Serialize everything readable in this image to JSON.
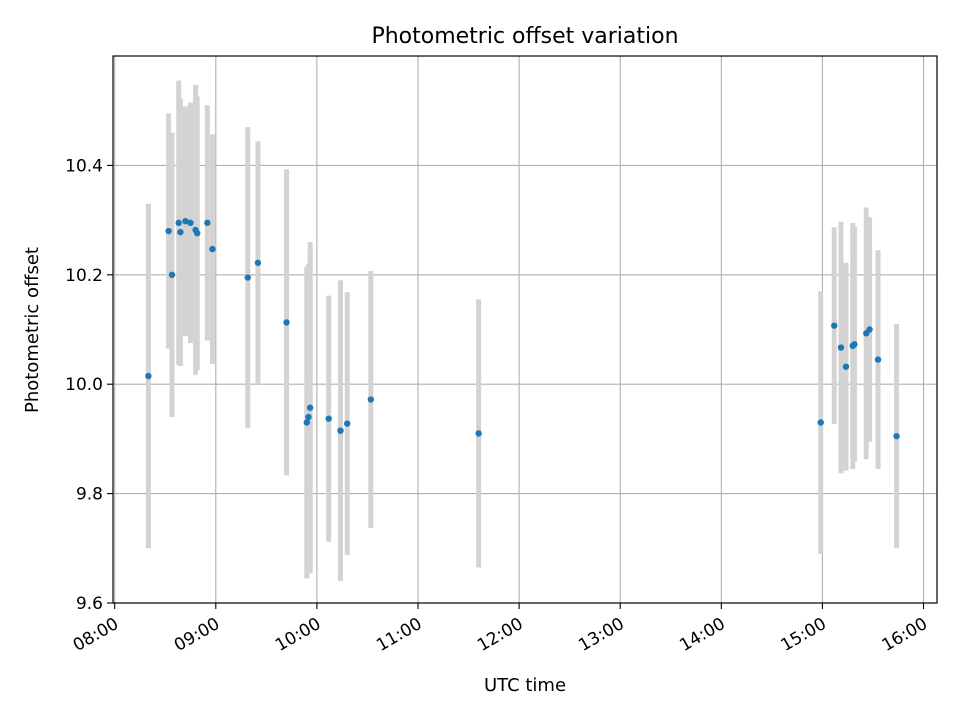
{
  "chart_data": {
    "type": "scatter",
    "title": "Photometric offset variation",
    "xlabel": "UTC time",
    "ylabel": "Photometric offset",
    "x_axis_type": "time",
    "xlim": [
      "07:59",
      "16:08"
    ],
    "ylim": [
      9.6,
      10.6
    ],
    "grid": true,
    "x_ticks": [
      "08:00",
      "09:00",
      "10:00",
      "11:00",
      "12:00",
      "13:00",
      "14:00",
      "15:00",
      "16:00"
    ],
    "y_ticks": [
      "9.6",
      "9.8",
      "10.0",
      "10.2",
      "10.4"
    ],
    "colors": {
      "points": "#1f77b4",
      "error_bars": "#d3d3d3",
      "grid": "#b0b0b0"
    },
    "series": [
      {
        "points": [
          {
            "x": "08:20",
            "y": 10.015,
            "err": 0.315
          },
          {
            "x": "08:32",
            "y": 10.28,
            "err": 0.215
          },
          {
            "x": "08:34",
            "y": 10.2,
            "err": 0.26
          },
          {
            "x": "08:38",
            "y": 10.295,
            "err": 0.26
          },
          {
            "x": "08:39",
            "y": 10.278,
            "err": 0.245
          },
          {
            "x": "08:42",
            "y": 10.298,
            "err": 0.21
          },
          {
            "x": "08:45",
            "y": 10.295,
            "err": 0.22
          },
          {
            "x": "08:48",
            "y": 10.282,
            "err": 0.265
          },
          {
            "x": "08:49",
            "y": 10.276,
            "err": 0.25
          },
          {
            "x": "08:55",
            "y": 10.295,
            "err": 0.215
          },
          {
            "x": "08:58",
            "y": 10.247,
            "err": 0.21
          },
          {
            "x": "09:19",
            "y": 10.195,
            "err": 0.275
          },
          {
            "x": "09:25",
            "y": 10.222,
            "err": 0.222
          },
          {
            "x": "09:42",
            "y": 10.113,
            "err": 0.28
          },
          {
            "x": "09:54",
            "y": 9.93,
            "err": 0.285
          },
          {
            "x": "09:55",
            "y": 9.94,
            "err": 0.28
          },
          {
            "x": "09:56",
            "y": 9.957,
            "err": 0.303
          },
          {
            "x": "10:07",
            "y": 9.937,
            "err": 0.225
          },
          {
            "x": "10:14",
            "y": 9.915,
            "err": 0.275
          },
          {
            "x": "10:18",
            "y": 9.928,
            "err": 0.24
          },
          {
            "x": "10:32",
            "y": 9.972,
            "err": 0.235
          },
          {
            "x": "11:36",
            "y": 9.91,
            "err": 0.245
          },
          {
            "x": "14:59",
            "y": 9.93,
            "err": 0.24
          },
          {
            "x": "15:07",
            "y": 10.107,
            "err": 0.18
          },
          {
            "x": "15:11",
            "y": 10.067,
            "err": 0.23
          },
          {
            "x": "15:14",
            "y": 10.032,
            "err": 0.19
          },
          {
            "x": "15:18",
            "y": 10.07,
            "err": 0.225
          },
          {
            "x": "15:19",
            "y": 10.073,
            "err": 0.215
          },
          {
            "x": "15:26",
            "y": 10.093,
            "err": 0.23
          },
          {
            "x": "15:28",
            "y": 10.1,
            "err": 0.205
          },
          {
            "x": "15:33",
            "y": 10.045,
            "err": 0.2
          },
          {
            "x": "15:44",
            "y": 9.905,
            "err": 0.205
          }
        ]
      }
    ]
  }
}
